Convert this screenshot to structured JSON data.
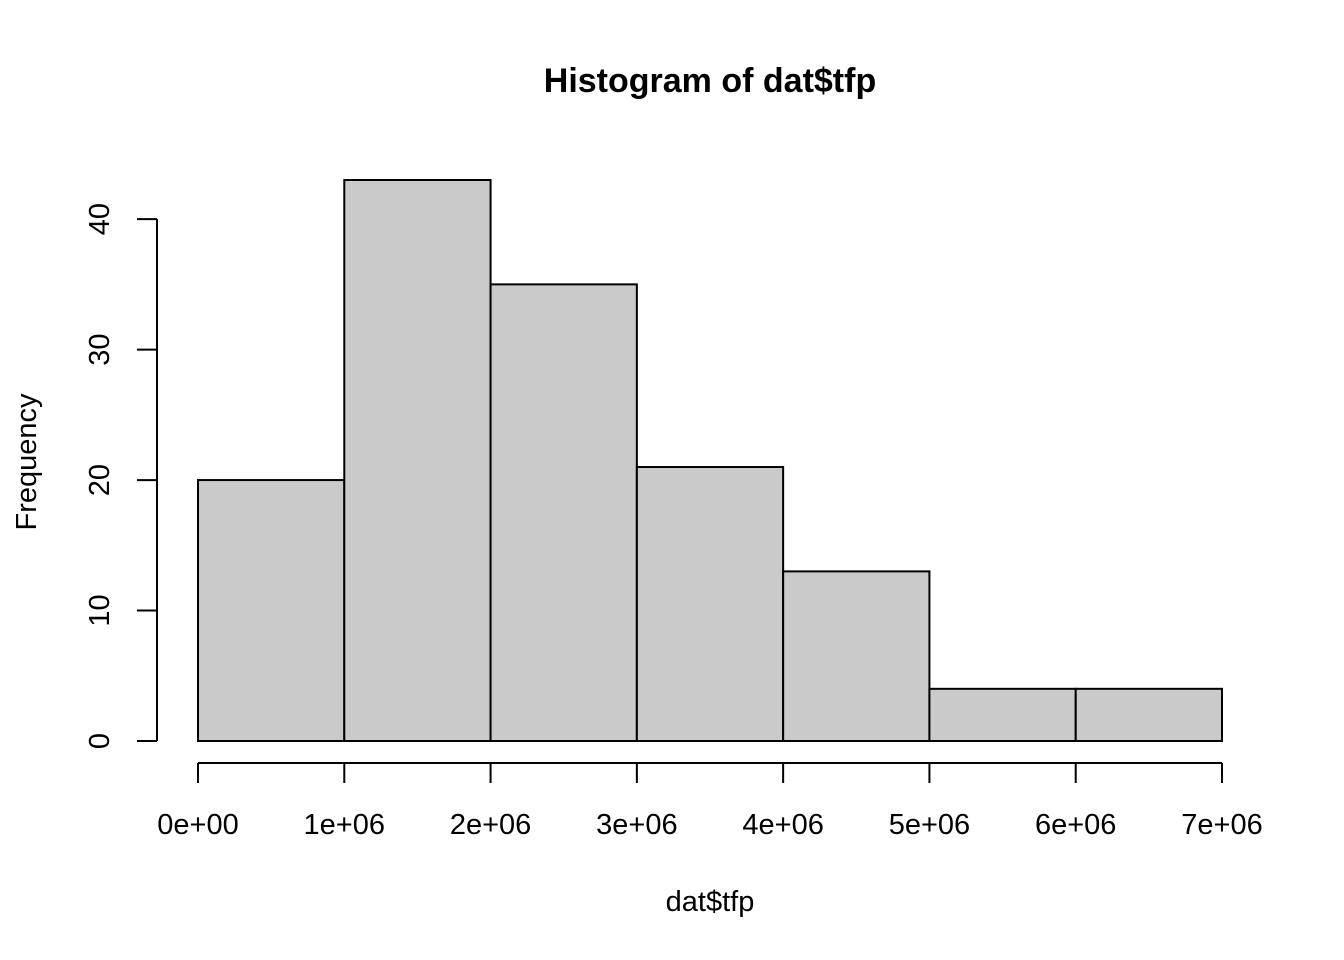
{
  "chart_data": {
    "type": "bar",
    "title": "Histogram of dat$tfp",
    "xlabel": "dat$tfp",
    "ylabel": "Frequency",
    "bins": [
      {
        "start": 0,
        "end": 1000000,
        "count": 20
      },
      {
        "start": 1000000,
        "end": 2000000,
        "count": 43
      },
      {
        "start": 2000000,
        "end": 3000000,
        "count": 35
      },
      {
        "start": 3000000,
        "end": 4000000,
        "count": 21
      },
      {
        "start": 4000000,
        "end": 5000000,
        "count": 13
      },
      {
        "start": 5000000,
        "end": 6000000,
        "count": 4
      },
      {
        "start": 6000000,
        "end": 7000000,
        "count": 4
      }
    ],
    "xlim": [
      0,
      7000000
    ],
    "ylim": [
      0,
      43
    ],
    "x_ticks": [
      0,
      1000000,
      2000000,
      3000000,
      4000000,
      5000000,
      6000000,
      7000000
    ],
    "x_tick_labels": [
      "0e+00",
      "1e+06",
      "2e+06",
      "3e+06",
      "4e+06",
      "5e+06",
      "6e+06",
      "7e+06"
    ],
    "y_ticks": [
      0,
      10,
      20,
      30,
      40
    ],
    "y_tick_labels": [
      "0",
      "10",
      "20",
      "30",
      "40"
    ],
    "bar_fill": "#cacaca",
    "bar_stroke": "#000000",
    "grid": false,
    "legend": "none"
  }
}
